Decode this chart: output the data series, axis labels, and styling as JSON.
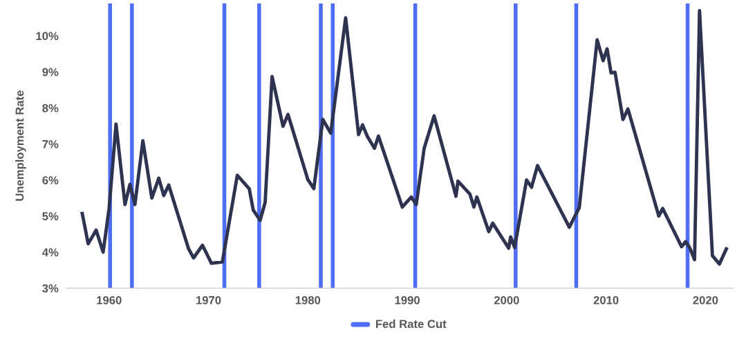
{
  "chart_data": {
    "type": "line",
    "ylabel": "Unemployment Rate",
    "legend": "bottom",
    "grid": false,
    "marker": "none",
    "line_style": "solid",
    "xlim": [
      1955.7,
      2022.8
    ],
    "xticks": [
      1960,
      1970,
      1980,
      1990,
      2000,
      2010,
      2020
    ],
    "ylim": [
      3,
      10.9
    ],
    "yticks": [
      {
        "value": 3,
        "label": "3%"
      },
      {
        "value": 4,
        "label": "4%"
      },
      {
        "value": 5,
        "label": "5%"
      },
      {
        "value": 6,
        "label": "6%"
      },
      {
        "value": 7,
        "label": "7%"
      },
      {
        "value": 8,
        "label": "8%"
      },
      {
        "value": 9,
        "label": "9%"
      },
      {
        "value": 10,
        "label": "10%"
      }
    ],
    "series": [
      {
        "color": "#2e3350",
        "x": [
          1957.3,
          1957.9,
          1958.7,
          1959.4,
          1960.0,
          1960.7,
          1961.6,
          1962.1,
          1962.6,
          1963.4,
          1964.3,
          1965.0,
          1965.5,
          1966.0,
          1968.0,
          1968.5,
          1969.4,
          1970.3,
          1971.4,
          1972.9,
          1974.1,
          1974.5,
          1975.2,
          1975.7,
          1976.4,
          1977.5,
          1978.0,
          1980.0,
          1980.6,
          1981.5,
          1982.3,
          1983.8,
          1985.1,
          1985.5,
          1986.0,
          1986.7,
          1987.1,
          1989.5,
          1990.4,
          1990.9,
          1991.7,
          1992.7,
          1994.9,
          1995.1,
          1996.3,
          1996.7,
          1997.0,
          1998.2,
          1998.6,
          2000.2,
          2000.4,
          2000.8,
          2002.0,
          2002.5,
          2003.1,
          2006.3,
          2007.3,
          2009.1,
          2009.7,
          2010.1,
          2010.5,
          2010.9,
          2011.7,
          2012.2,
          2012.6,
          2015.3,
          2015.7,
          2017.6,
          2018.0,
          2018.4,
          2018.9,
          2019.4,
          2020.7,
          2021.4,
          2022.1
        ],
        "values": [
          5.07,
          4.23,
          4.61,
          4.0,
          5.2,
          7.55,
          5.32,
          5.88,
          5.32,
          7.09,
          5.5,
          6.05,
          5.57,
          5.86,
          4.09,
          3.84,
          4.19,
          3.69,
          3.73,
          6.13,
          5.76,
          5.17,
          4.88,
          5.38,
          8.87,
          7.49,
          7.82,
          6.01,
          5.76,
          7.68,
          7.3,
          10.5,
          7.26,
          7.53,
          7.2,
          6.88,
          7.22,
          5.25,
          5.53,
          5.32,
          6.88,
          7.78,
          5.55,
          5.97,
          5.61,
          5.25,
          5.53,
          4.57,
          4.8,
          4.11,
          4.42,
          4.13,
          6.0,
          5.8,
          6.4,
          4.69,
          5.23,
          9.89,
          9.31,
          9.64,
          8.97,
          8.99,
          7.68,
          7.97,
          7.59,
          5.0,
          5.21,
          4.15,
          4.29,
          4.13,
          3.79,
          10.7,
          3.9,
          3.67,
          4.09
        ]
      }
    ],
    "ref_lines": [
      {
        "axis": "x",
        "value": 1960.1,
        "label": "Fed Rate Cut",
        "color": "#4f6ef7"
      },
      {
        "axis": "x",
        "value": 1962.3,
        "color": "#4f6ef7"
      },
      {
        "axis": "x",
        "value": 1971.6,
        "color": "#4f6ef7"
      },
      {
        "axis": "x",
        "value": 1975.1,
        "color": "#4f6ef7"
      },
      {
        "axis": "x",
        "value": 1981.3,
        "color": "#4f6ef7"
      },
      {
        "axis": "x",
        "value": 1982.5,
        "color": "#4f6ef7"
      },
      {
        "axis": "x",
        "value": 1990.8,
        "color": "#4f6ef7"
      },
      {
        "axis": "x",
        "value": 2000.9,
        "color": "#4f6ef7"
      },
      {
        "axis": "x",
        "value": 2007.0,
        "color": "#4f6ef7"
      },
      {
        "axis": "x",
        "value": 2018.2,
        "color": "#4f6ef7"
      }
    ]
  }
}
